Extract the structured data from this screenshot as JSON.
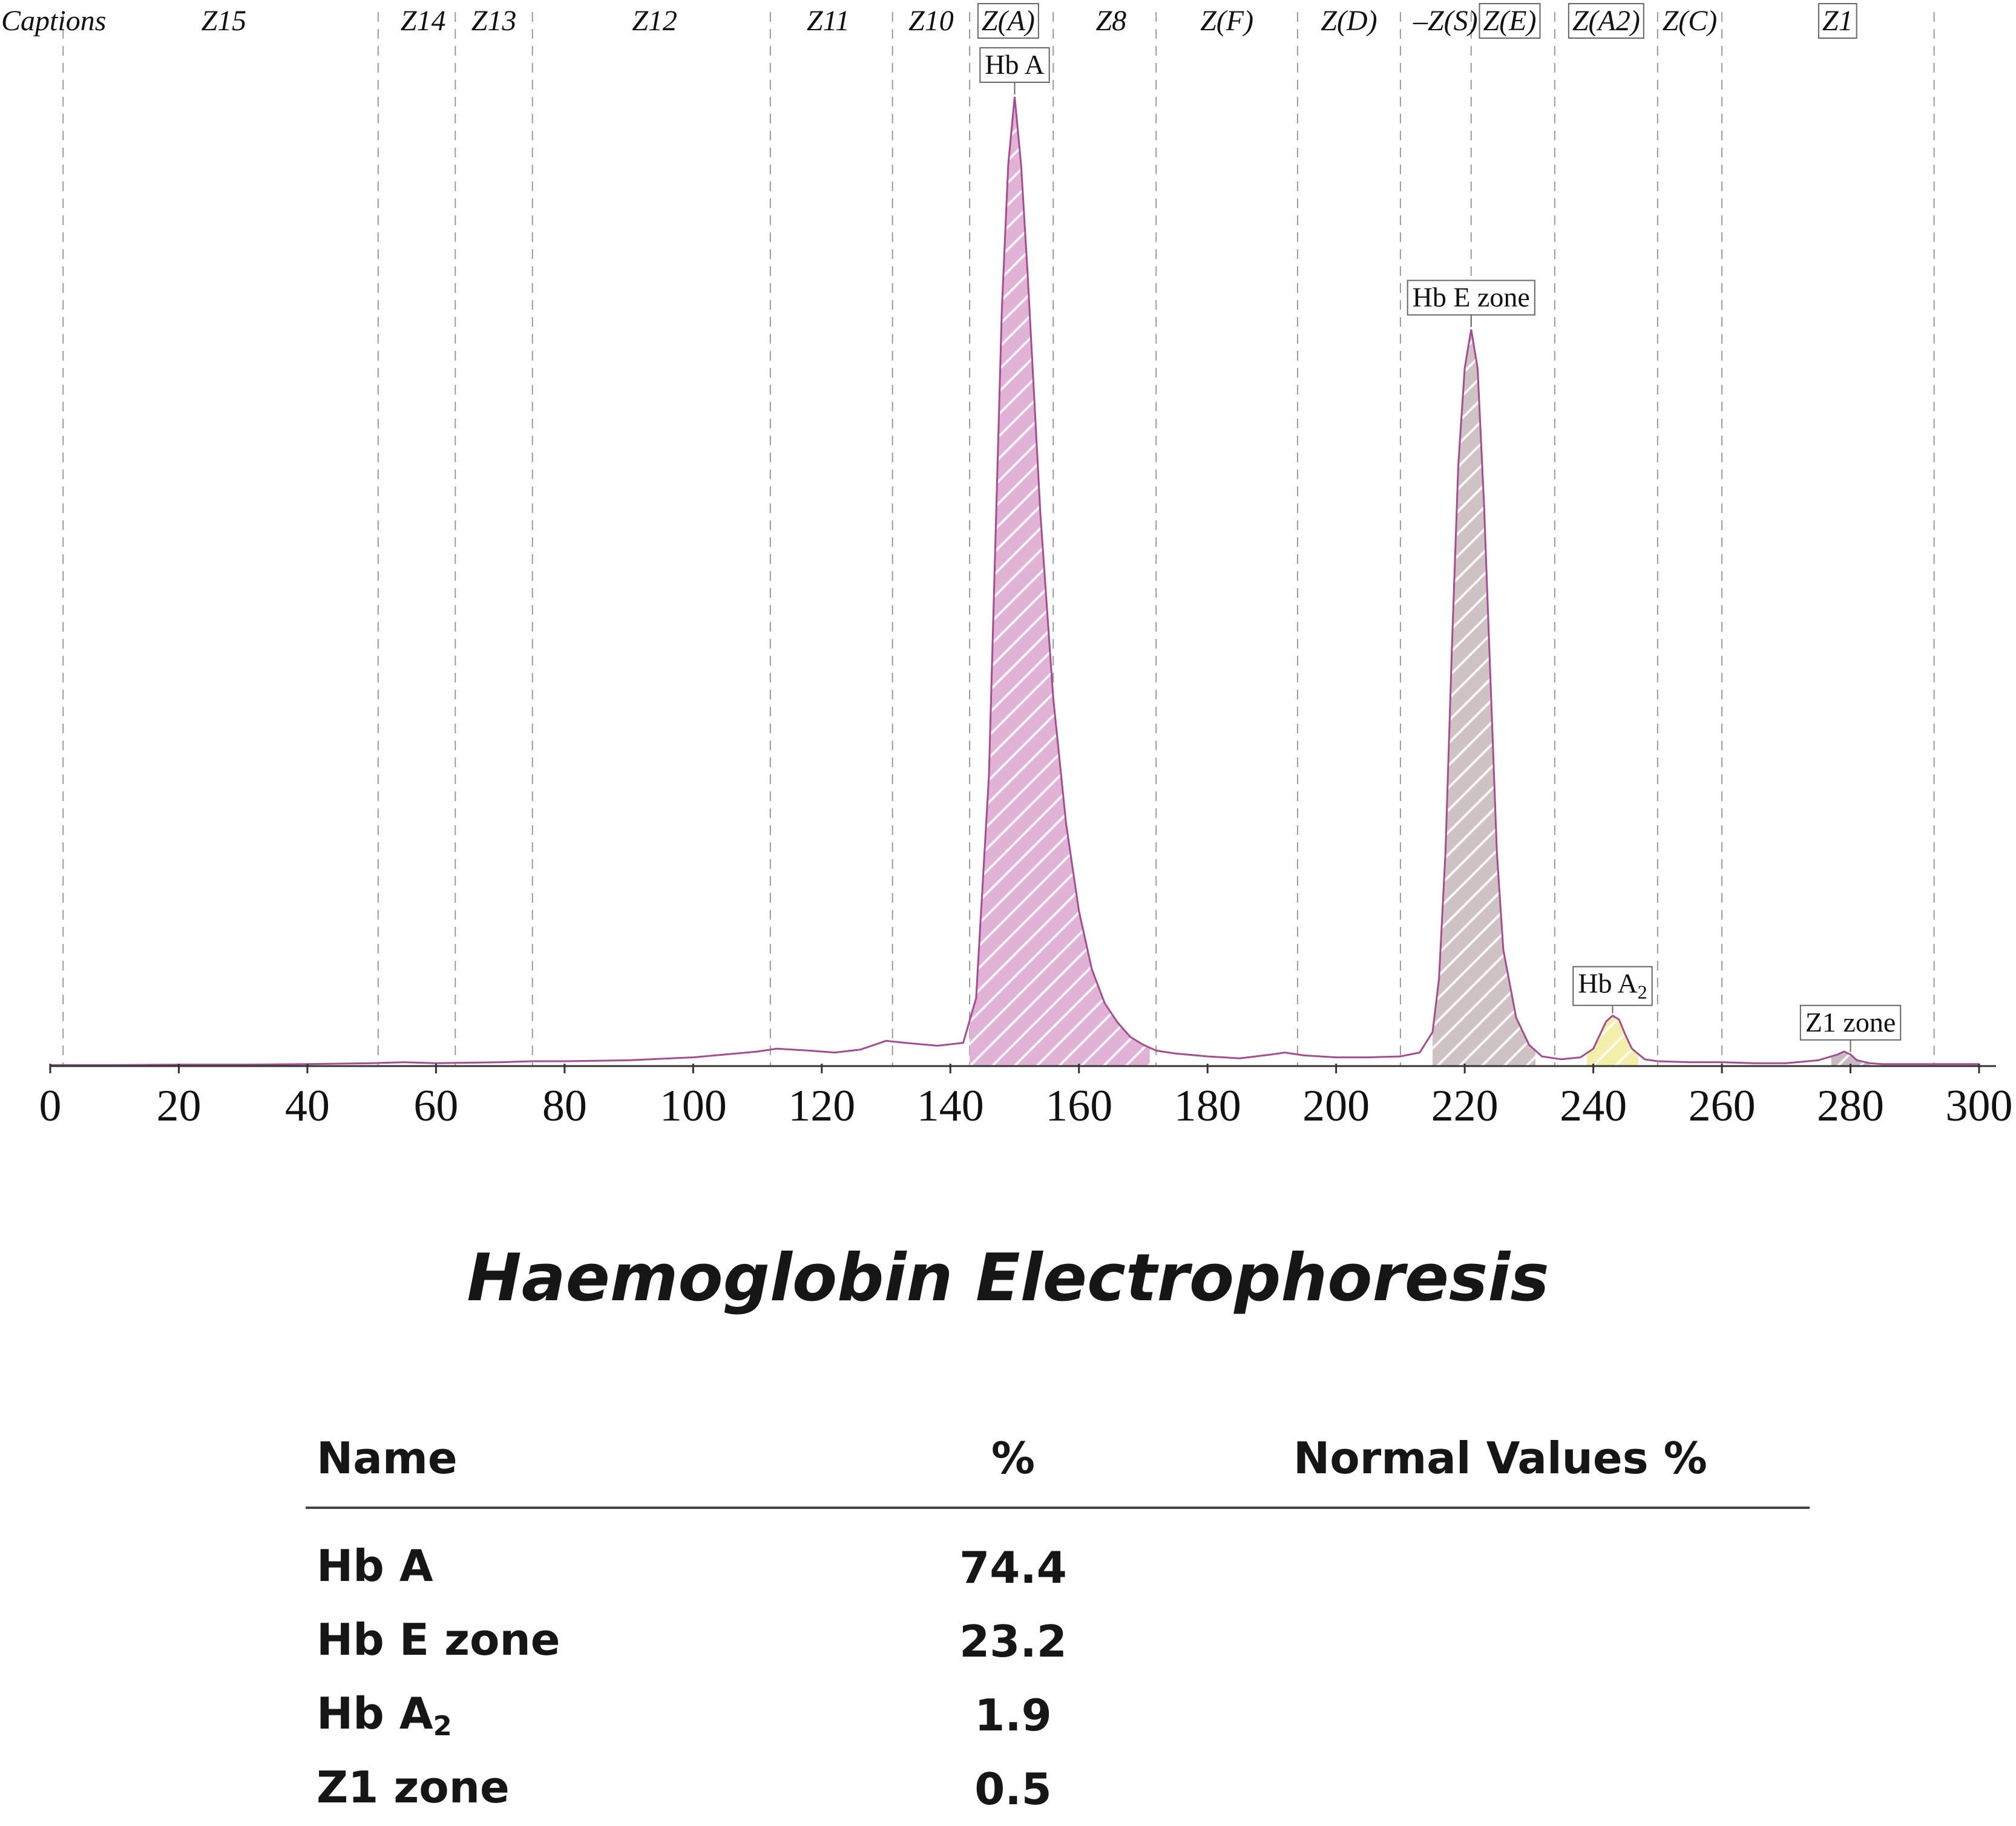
{
  "chart_data": {
    "type": "area",
    "title": "Haemoglobin Electrophoresis",
    "xlabel": "",
    "ylabel": "",
    "xlim": [
      0,
      300
    ],
    "ylim": [
      0,
      100
    ],
    "x_ticks": [
      0,
      20,
      40,
      60,
      80,
      100,
      120,
      140,
      160,
      180,
      200,
      220,
      240,
      260,
      280,
      300
    ],
    "grid": false,
    "captions_label": "Captions",
    "zones": [
      {
        "label": "Z15",
        "center": 27,
        "boxed": false
      },
      {
        "label": "Z14",
        "center": 58,
        "boxed": false
      },
      {
        "label": "Z13",
        "center": 69,
        "boxed": false
      },
      {
        "label": "Z12",
        "center": 94,
        "boxed": false
      },
      {
        "label": "Z11",
        "center": 121,
        "boxed": false
      },
      {
        "label": "Z10",
        "center": 137,
        "boxed": false
      },
      {
        "label": "Z(A)",
        "center": 149,
        "boxed": true
      },
      {
        "label": "Z8",
        "center": 165,
        "boxed": false
      },
      {
        "label": "Z(F)",
        "center": 183,
        "boxed": false
      },
      {
        "label": "Z(D)",
        "center": 202,
        "boxed": false
      },
      {
        "label": "–Z(S)",
        "center": 217,
        "boxed": false
      },
      {
        "label": "Z(E)",
        "center": 227,
        "boxed": true
      },
      {
        "label": "Z(A2)",
        "center": 242,
        "boxed": true
      },
      {
        "label": "Z(C)",
        "center": 255,
        "boxed": false
      },
      {
        "label": "Z1",
        "center": 278,
        "boxed": true
      }
    ],
    "zone_boundaries": [
      2,
      51,
      63,
      75,
      112,
      131,
      143,
      156,
      172,
      194,
      210,
      221,
      234,
      250,
      260,
      293
    ],
    "trace": {
      "x": [
        0,
        10,
        20,
        30,
        40,
        50,
        55,
        60,
        70,
        75,
        80,
        90,
        100,
        110,
        113,
        118,
        122,
        126,
        130,
        133,
        138,
        142,
        144,
        146,
        148,
        149,
        150,
        151,
        152,
        154,
        156,
        158,
        160,
        162,
        164,
        166,
        168,
        170,
        172,
        175,
        180,
        185,
        190,
        192,
        195,
        200,
        205,
        210,
        213,
        215,
        216,
        217,
        218,
        219,
        220,
        221,
        222,
        223,
        224,
        225,
        226,
        228,
        230,
        232,
        235,
        238,
        240,
        241,
        242,
        243,
        244,
        245,
        246,
        248,
        250,
        255,
        260,
        265,
        270,
        275,
        278,
        279,
        280,
        281,
        283,
        285,
        290,
        295,
        300
      ],
      "y": [
        0.1,
        0.1,
        0.15,
        0.15,
        0.2,
        0.3,
        0.4,
        0.3,
        0.4,
        0.5,
        0.5,
        0.6,
        0.9,
        1.5,
        1.8,
        1.6,
        1.4,
        1.7,
        2.6,
        2.4,
        2.1,
        2.4,
        7,
        30,
        78,
        93,
        100,
        93,
        82,
        57,
        38,
        25,
        16,
        10,
        6.5,
        4.5,
        3,
        2.2,
        1.6,
        1.3,
        1.0,
        0.8,
        1.2,
        1.4,
        1.1,
        0.9,
        0.9,
        1.0,
        1.4,
        3.5,
        9,
        22,
        43,
        62,
        72,
        76,
        72,
        58,
        40,
        22,
        12,
        5,
        2.2,
        1.0,
        0.7,
        0.9,
        1.8,
        3.2,
        4.6,
        5.2,
        4.8,
        3.2,
        1.8,
        0.7,
        0.5,
        0.4,
        0.4,
        0.3,
        0.3,
        0.6,
        1.2,
        1.5,
        1.2,
        0.6,
        0.3,
        0.2,
        0.2,
        0.2,
        0.2
      ]
    },
    "peaks": [
      {
        "name": "Hb A",
        "label_main": "Hb A",
        "label_sub": "",
        "apex_x": 150,
        "from": 143,
        "to": 171,
        "color": "#e0b2d6"
      },
      {
        "name": "Hb E zone",
        "label_main": "Hb E zone",
        "label_sub": "",
        "apex_x": 221,
        "from": 215,
        "to": 231,
        "color": "#cfc2c5"
      },
      {
        "name": "Hb A2",
        "label_main": "Hb A",
        "label_sub": "2",
        "apex_x": 243,
        "from": 239,
        "to": 247,
        "color": "#f3efaa"
      },
      {
        "name": "Z1 zone",
        "label_main": "Z1 zone",
        "label_sub": "",
        "apex_x": 280,
        "from": 277,
        "to": 283,
        "color": "#c9b9c2"
      }
    ],
    "line_color": "#a64c90"
  },
  "report": {
    "title": "Haemoglobin Electrophoresis",
    "headers": {
      "name": "Name",
      "percent": "%",
      "normal": "Normal Values %"
    },
    "rows": [
      {
        "name_main": "Hb A",
        "name_sub": "",
        "percent": "74.4",
        "normal": ""
      },
      {
        "name_main": "Hb E zone",
        "name_sub": "",
        "percent": "23.2",
        "normal": ""
      },
      {
        "name_main": "Hb A",
        "name_sub": "2",
        "percent": "1.9",
        "normal": ""
      },
      {
        "name_main": "Z1 zone",
        "name_sub": "",
        "percent": "0.5",
        "normal": ""
      }
    ]
  }
}
